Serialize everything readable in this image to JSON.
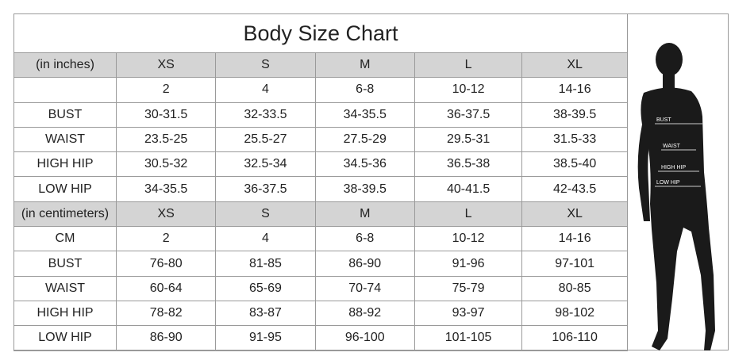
{
  "title": "Body Size Chart",
  "inches": {
    "header": [
      "(in inches)",
      "XS",
      "S",
      "M",
      "L",
      "XL"
    ],
    "rows": [
      [
        "",
        "2",
        "4",
        "6-8",
        "10-12",
        "14-16"
      ],
      [
        "BUST",
        "30-31.5",
        "32-33.5",
        "34-35.5",
        "36-37.5",
        "38-39.5"
      ],
      [
        "WAIST",
        "23.5-25",
        "25.5-27",
        "27.5-29",
        "29.5-31",
        "31.5-33"
      ],
      [
        "HIGH HIP",
        "30.5-32",
        "32.5-34",
        "34.5-36",
        "36.5-38",
        "38.5-40"
      ],
      [
        "LOW HIP",
        "34-35.5",
        "36-37.5",
        "38-39.5",
        "40-41.5",
        "42-43.5"
      ]
    ]
  },
  "centimeters": {
    "header": [
      "(in centimeters)",
      "XS",
      "S",
      "M",
      "L",
      "XL"
    ],
    "rows": [
      [
        "CM",
        "2",
        "4",
        "6-8",
        "10-12",
        "14-16"
      ],
      [
        "BUST",
        "76-80",
        "81-85",
        "86-90",
        "91-96",
        "97-101"
      ],
      [
        "WAIST",
        "60-64",
        "65-69",
        "70-74",
        "75-79",
        "80-85"
      ],
      [
        "HIGH HIP",
        "78-82",
        "83-87",
        "88-92",
        "93-97",
        "98-102"
      ],
      [
        "LOW HIP",
        "86-90",
        "91-95",
        "96-100",
        "101-105",
        "106-110"
      ]
    ]
  },
  "figure": {
    "labels": [
      "BUST",
      "WAIST",
      "HIGH HIP",
      "LOW HIP"
    ]
  },
  "colors": {
    "header_bg": "#d4d4d4",
    "border": "#9a9a9a",
    "silhouette": "#1a1a1a"
  }
}
